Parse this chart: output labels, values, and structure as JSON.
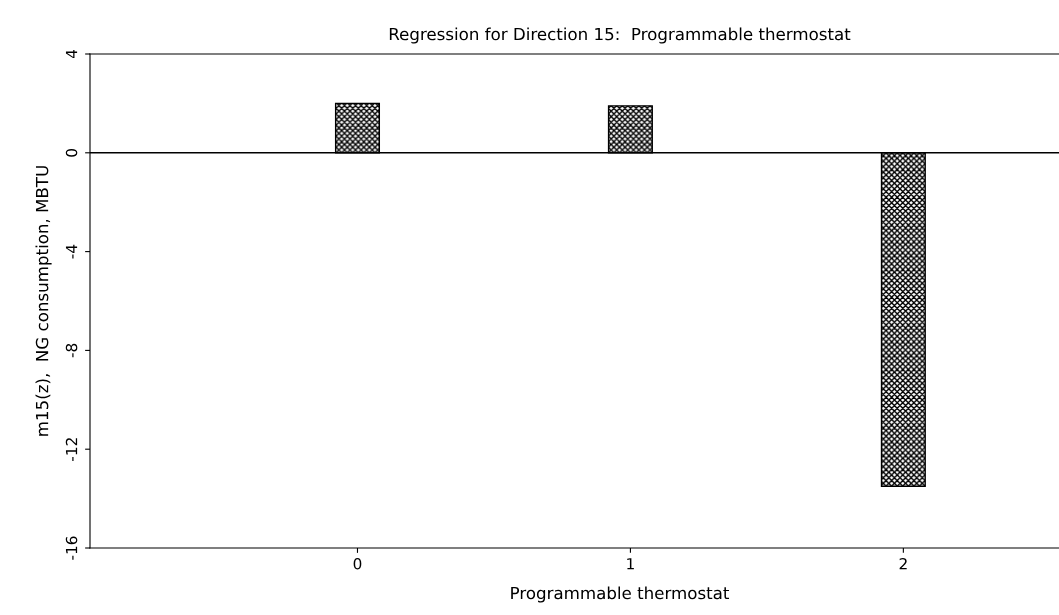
{
  "chart_data": {
    "type": "bar",
    "title": "Regression for Direction 15:  Programmable thermostat",
    "xlabel": "Programmable thermostat",
    "ylabel": "m15(z),  NG consumption, MBTU",
    "categories": [
      "0",
      "1",
      "2"
    ],
    "values": [
      2.0,
      1.9,
      -13.5
    ],
    "color": "#000000",
    "ylim": [
      -16,
      4
    ],
    "yticks": [
      -16,
      -12,
      -8,
      -4,
      0,
      4
    ],
    "ref_lines": [
      {
        "axis": "y",
        "value": 0,
        "color": "#000000"
      }
    ],
    "grid": false
  }
}
